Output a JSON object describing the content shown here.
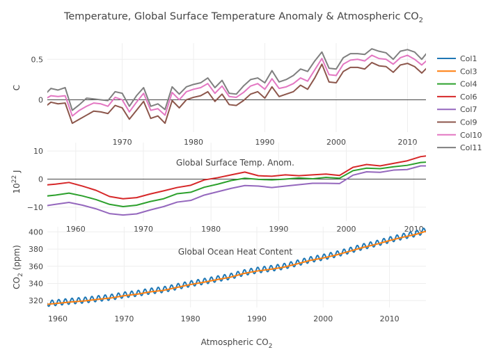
{
  "chart_data": {
    "type": "line",
    "title": "Temperature, Global Surface Temperature Anomaly & Atmospheric CO",
    "title_subscript": "2",
    "legend": [
      "Col1",
      "Col3",
      "Col4",
      "Col6",
      "Col7",
      "Col9",
      "Col10",
      "Col11"
    ],
    "legend_placement": "right",
    "colors": {
      "Col1": "#1f77b4",
      "Col3": "#ff7f0e",
      "Col4": "#2ca02c",
      "Col6": "#d62728",
      "Col7": "#9467bd",
      "Col9": "#8c564b",
      "Col10": "#e377c2",
      "Col11": "#7f7f7f"
    },
    "panels": [
      {
        "id": "temperature",
        "ylabel": "C",
        "xlim": [
          1959.5,
          2012.2
        ],
        "ylim": [
          -0.4,
          0.7
        ],
        "yticks": [
          0,
          0.5
        ],
        "ytick_labels": [
          "0",
          "0.5"
        ],
        "xticks": [
          1970,
          1980,
          1990,
          2000,
          2010
        ],
        "zero_line": true,
        "annotation": "",
        "series": [
          {
            "name": "Col9",
            "x": [
              1959,
              1960,
              1961,
              1962,
              1963,
              1964,
              1965,
              1966,
              1967,
              1968,
              1969,
              1970,
              1971,
              1972,
              1973,
              1974,
              1975,
              1976,
              1977,
              1978,
              1979,
              1980,
              1981,
              1982,
              1983,
              1984,
              1985,
              1986,
              1987,
              1988,
              1989,
              1990,
              1991,
              1992,
              1993,
              1994,
              1995,
              1996,
              1997,
              1998,
              1999,
              2000,
              2001,
              2002,
              2003,
              2004,
              2005,
              2006,
              2007,
              2008,
              2009,
              2010,
              2011,
              2012,
              2013
            ],
            "values": [
              -0.1,
              -0.03,
              -0.05,
              -0.04,
              -0.29,
              -0.24,
              -0.19,
              -0.14,
              -0.15,
              -0.17,
              -0.07,
              -0.1,
              -0.24,
              -0.13,
              -0.02,
              -0.23,
              -0.2,
              -0.29,
              -0.01,
              -0.1,
              0.0,
              0.03,
              0.05,
              0.1,
              -0.02,
              0.07,
              -0.06,
              -0.07,
              -0.01,
              0.07,
              0.1,
              0.02,
              0.16,
              0.04,
              0.07,
              0.1,
              0.18,
              0.13,
              0.27,
              0.44,
              0.22,
              0.21,
              0.35,
              0.4,
              0.4,
              0.38,
              0.46,
              0.42,
              0.41,
              0.34,
              0.43,
              0.45,
              0.41,
              0.33,
              0.42
            ]
          },
          {
            "name": "Col10",
            "x": [
              1959,
              1960,
              1961,
              1962,
              1963,
              1964,
              1965,
              1966,
              1967,
              1968,
              1969,
              1970,
              1971,
              1972,
              1973,
              1974,
              1975,
              1976,
              1977,
              1978,
              1979,
              1980,
              1981,
              1982,
              1983,
              1984,
              1985,
              1986,
              1987,
              1988,
              1989,
              1990,
              1991,
              1992,
              1993,
              1994,
              1995,
              1996,
              1997,
              1998,
              1999,
              2000,
              2001,
              2002,
              2003,
              2004,
              2005,
              2006,
              2007,
              2008,
              2009,
              2010,
              2011,
              2012,
              2013
            ],
            "values": [
              0.0,
              0.05,
              0.04,
              0.05,
              -0.2,
              -0.13,
              -0.08,
              -0.04,
              -0.05,
              -0.08,
              0.03,
              0.0,
              -0.15,
              -0.03,
              0.08,
              -0.13,
              -0.11,
              -0.19,
              0.09,
              0.0,
              0.1,
              0.13,
              0.15,
              0.2,
              0.08,
              0.17,
              0.04,
              0.03,
              0.09,
              0.17,
              0.2,
              0.13,
              0.26,
              0.14,
              0.16,
              0.2,
              0.27,
              0.23,
              0.37,
              0.51,
              0.31,
              0.3,
              0.44,
              0.49,
              0.5,
              0.48,
              0.55,
              0.51,
              0.5,
              0.44,
              0.52,
              0.55,
              0.5,
              0.43,
              0.51
            ]
          },
          {
            "name": "Col11",
            "x": [
              1959,
              1960,
              1961,
              1962,
              1963,
              1964,
              1965,
              1966,
              1967,
              1968,
              1969,
              1970,
              1971,
              1972,
              1973,
              1974,
              1975,
              1976,
              1977,
              1978,
              1979,
              1980,
              1981,
              1982,
              1983,
              1984,
              1985,
              1986,
              1987,
              1988,
              1989,
              1990,
              1991,
              1992,
              1993,
              1994,
              1995,
              1996,
              1997,
              1998,
              1999,
              2000,
              2001,
              2002,
              2003,
              2004,
              2005,
              2006,
              2007,
              2008,
              2009,
              2010,
              2011,
              2012,
              2013
            ],
            "values": [
              0.05,
              0.14,
              0.12,
              0.15,
              -0.13,
              -0.06,
              0.02,
              0.01,
              0.0,
              -0.01,
              0.1,
              0.08,
              -0.08,
              0.05,
              0.15,
              -0.08,
              -0.05,
              -0.12,
              0.16,
              0.07,
              0.16,
              0.19,
              0.21,
              0.27,
              0.15,
              0.24,
              0.08,
              0.07,
              0.17,
              0.25,
              0.27,
              0.21,
              0.36,
              0.22,
              0.25,
              0.3,
              0.38,
              0.35,
              0.48,
              0.59,
              0.39,
              0.38,
              0.52,
              0.57,
              0.57,
              0.56,
              0.63,
              0.6,
              0.58,
              0.5,
              0.6,
              0.62,
              0.59,
              0.5,
              0.61
            ]
          }
        ]
      },
      {
        "id": "surface",
        "ylabel": "10",
        "ylabel_sup": "22",
        "ylabel_unit": " J",
        "xlim": [
          1955.8,
          2012.4
        ],
        "ylim": [
          -15,
          13
        ],
        "yticks": [
          -10,
          0,
          10
        ],
        "ytick_labels": [
          "−10",
          "0",
          "10"
        ],
        "xticks": [
          1960,
          1970,
          1980,
          1990,
          2000,
          2010
        ],
        "xtick_labels": [
          "1960",
          "1970",
          "1980",
          "1990",
          "2000",
          "2010"
        ],
        "zero_line": true,
        "annotation": "Global Surface Temp. Anom.",
        "series": [
          {
            "name": "Col6",
            "x": [
              1955,
              1957,
              1959,
              1961,
              1963,
              1965,
              1967,
              1969,
              1971,
              1973,
              1975,
              1977,
              1979,
              1981,
              1983,
              1985,
              1987,
              1989,
              1991,
              1993,
              1995,
              1997,
              1999,
              2001,
              2003,
              2005,
              2007,
              2009,
              2011,
              2013
            ],
            "values": [
              -2.2,
              -1.8,
              -1.2,
              -2.5,
              -4.0,
              -6.2,
              -7.0,
              -6.6,
              -5.3,
              -4.2,
              -3.0,
              -2.2,
              -0.3,
              0.5,
              1.5,
              2.5,
              1.2,
              1.0,
              1.5,
              1.2,
              1.5,
              1.8,
              1.3,
              4.2,
              5.2,
              4.7,
              5.6,
              6.5,
              8.0,
              8.6
            ]
          },
          {
            "name": "Col4",
            "x": [
              1955,
              1957,
              1959,
              1961,
              1963,
              1965,
              1967,
              1969,
              1971,
              1973,
              1975,
              1977,
              1979,
              1981,
              1983,
              1985,
              1987,
              1989,
              1991,
              1993,
              1995,
              1997,
              1999,
              2001,
              2003,
              2005,
              2007,
              2009,
              2011,
              2013
            ],
            "values": [
              -6.2,
              -5.7,
              -5.0,
              -6.0,
              -7.3,
              -9.0,
              -9.8,
              -9.3,
              -8.0,
              -7.0,
              -5.2,
              -4.7,
              -2.9,
              -1.8,
              -0.5,
              0.3,
              -0.1,
              -0.3,
              0.0,
              0.4,
              0.1,
              0.6,
              0.3,
              3.0,
              3.9,
              3.7,
              4.4,
              4.9,
              5.9,
              6.2
            ]
          },
          {
            "name": "Col7",
            "x": [
              1955,
              1957,
              1959,
              1961,
              1963,
              1965,
              1967,
              1969,
              1971,
              1973,
              1975,
              1977,
              1979,
              1981,
              1983,
              1985,
              1987,
              1989,
              1991,
              1993,
              1995,
              1997,
              1999,
              2001,
              2003,
              2005,
              2007,
              2009,
              2011,
              2013
            ],
            "values": [
              -9.7,
              -9.0,
              -8.3,
              -9.3,
              -10.6,
              -12.3,
              -12.8,
              -12.4,
              -11.0,
              -9.8,
              -8.2,
              -7.6,
              -5.7,
              -4.5,
              -3.3,
              -2.3,
              -2.5,
              -3.0,
              -2.5,
              -2.0,
              -1.5,
              -1.5,
              -1.6,
              1.4,
              2.6,
              2.4,
              3.2,
              3.4,
              4.7,
              4.7
            ]
          }
        ]
      },
      {
        "id": "ocean",
        "ylabel": "CO",
        "ylabel_sub": "2",
        "ylabel_unit": " (ppm)",
        "xlabel": "Atmospheric CO",
        "xlabel_sub": "2",
        "xlim": [
          1958,
          2015.5
        ],
        "ylim": [
          312,
          406
        ],
        "yticks": [
          320,
          340,
          360,
          380,
          400
        ],
        "ytick_labels": [
          "320",
          "340",
          "360",
          "380",
          "400"
        ],
        "xticks": [
          1960,
          1970,
          1980,
          1990,
          2000,
          2010
        ],
        "xtick_labels": [
          "1960",
          "1970",
          "1980",
          "1990",
          "2000",
          "2010"
        ],
        "zero_line": false,
        "annotation": "Global Ocean Heat Content",
        "series": [
          {
            "name": "Col3",
            "x": [
              1958,
              1960,
              1962,
              1964,
              1966,
              1968,
              1970,
              1972,
              1974,
              1976,
              1978,
              1980,
              1982,
              1984,
              1986,
              1988,
              1990,
              1992,
              1994,
              1996,
              1998,
              2000,
              2002,
              2004,
              2006,
              2008,
              2010,
              2012,
              2014,
              2015.5
            ],
            "values": [
              315.3,
              316.9,
              318.4,
              319.6,
              321.4,
              323.0,
              325.7,
              327.5,
              330.2,
              332.0,
              335.4,
              338.7,
              341.4,
              344.4,
              347.2,
              351.5,
              354.4,
              356.4,
              358.8,
              362.6,
              366.7,
              369.6,
              373.2,
              377.5,
              381.9,
              385.6,
              389.9,
              393.8,
              397.2,
              400.8
            ]
          }
        ],
        "seasonal_series": {
          "name": "Col1",
          "base": "Col3",
          "amplitude": 3.3
        }
      }
    ]
  }
}
